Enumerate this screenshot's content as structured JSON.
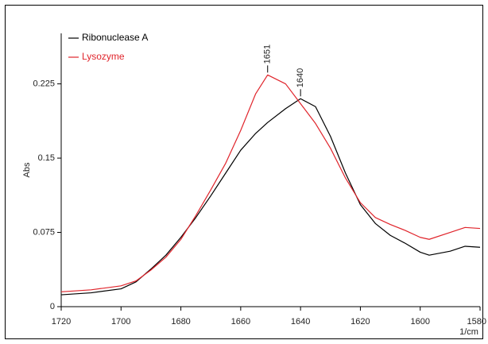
{
  "chart_data": {
    "type": "line",
    "x_label": "1/cm",
    "y_label": "Abs",
    "xlim": [
      1720,
      1580
    ],
    "ylim": [
      0,
      0.276
    ],
    "xticks": [
      1720,
      1700,
      1680,
      1660,
      1640,
      1620,
      1600,
      1580
    ],
    "yticks": [
      0,
      0.075,
      0.15,
      0.225
    ],
    "x": [
      1720,
      1710,
      1700,
      1695,
      1690,
      1685,
      1680,
      1675,
      1670,
      1665,
      1660,
      1655,
      1651,
      1645,
      1640,
      1635,
      1630,
      1625,
      1620,
      1615,
      1610,
      1605,
      1600,
      1597,
      1590,
      1585,
      1580
    ],
    "series": [
      {
        "name": "Ribonuclease A",
        "color": "#000000",
        "values": [
          0.012,
          0.014,
          0.018,
          0.025,
          0.038,
          0.052,
          0.07,
          0.09,
          0.112,
          0.135,
          0.158,
          0.175,
          0.186,
          0.2,
          0.21,
          0.202,
          0.172,
          0.135,
          0.103,
          0.084,
          0.072,
          0.064,
          0.055,
          0.052,
          0.056,
          0.061,
          0.06
        ]
      },
      {
        "name": "Lysozyme",
        "color": "#e0242b",
        "values": [
          0.015,
          0.017,
          0.021,
          0.026,
          0.037,
          0.05,
          0.068,
          0.092,
          0.118,
          0.145,
          0.178,
          0.215,
          0.234,
          0.225,
          0.205,
          0.185,
          0.16,
          0.13,
          0.105,
          0.09,
          0.083,
          0.077,
          0.07,
          0.068,
          0.075,
          0.08,
          0.079
        ]
      }
    ],
    "annotations": [
      {
        "label": "1651",
        "x": 1651,
        "y": 0.234
      },
      {
        "label": "1640",
        "x": 1640,
        "y": 0.21
      }
    ],
    "legend": "top-left"
  }
}
